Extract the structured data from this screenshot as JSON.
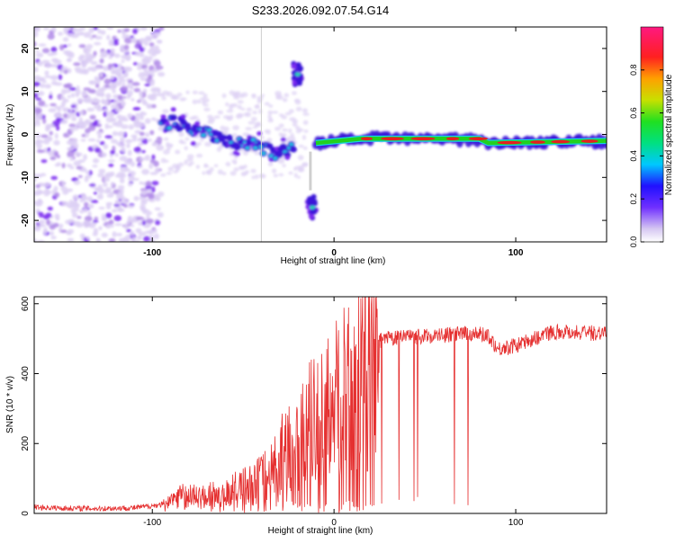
{
  "title": "S233.2026.092.07.54.G14",
  "colors": {
    "spectrum_low": "#d9c6f2",
    "spectrum_mid": "#3a10e0",
    "signal_band": "#22d020",
    "signal_core": "#e52020",
    "snr_line": "#e53030"
  },
  "chart_data": [
    {
      "type": "heatmap",
      "name": "spectrogram",
      "xlabel": "Height of straight line (km)",
      "ylabel": "Frequency (Hz)",
      "xlim": [
        -165,
        150
      ],
      "ylim": [
        -25,
        25
      ],
      "x_ticks": [
        -100,
        0,
        100
      ],
      "y_ticks": [
        -20,
        -10,
        0,
        10,
        20
      ],
      "x_tick_labels": [
        "-100",
        "0",
        "100"
      ],
      "y_tick_labels": [
        "-20",
        "-10",
        "0",
        "10",
        "20"
      ],
      "colorbar": {
        "label": "Normalized spectral amplitude",
        "range": [
          0,
          1
        ],
        "ticks": [
          0.0,
          0.2,
          0.4,
          0.6,
          0.8
        ],
        "tick_labels": [
          "0.0",
          "0.2",
          "0.4",
          "0.6",
          "0.8"
        ]
      },
      "features": [
        {
          "name": "noise",
          "x_range": [
            -165,
            -95
          ],
          "freq_range": [
            -25,
            25
          ],
          "amplitude": 0.15
        },
        {
          "name": "wandering-trace",
          "points": [
            [
              -95,
              3
            ],
            [
              -80,
              2
            ],
            [
              -60,
              -1
            ],
            [
              -40,
              -3
            ],
            [
              -30,
              -5
            ],
            [
              -22,
              -2
            ]
          ],
          "amplitude": 0.3
        },
        {
          "name": "upper-blob",
          "x": -20,
          "freq": 14,
          "amplitude": 0.35
        },
        {
          "name": "lower-blob",
          "x": -12,
          "freq": -17,
          "amplitude": 0.3
        },
        {
          "name": "stable-signal",
          "points": [
            [
              -10,
              -2
            ],
            [
              15,
              -1
            ],
            [
              80,
              -1
            ],
            [
              85,
              -2
            ],
            [
              150,
              -1.5
            ]
          ],
          "amplitude": 0.9
        }
      ]
    },
    {
      "type": "line",
      "name": "snr",
      "xlabel": "Height of straight line (km)",
      "ylabel": "SNR (10 * v/v)",
      "xlim": [
        -165,
        150
      ],
      "ylim": [
        0,
        620
      ],
      "x_ticks": [
        -100,
        0,
        100
      ],
      "y_ticks": [
        0,
        200,
        400,
        600
      ],
      "x_tick_labels": [
        "-100",
        "0",
        "100"
      ],
      "y_tick_labels": [
        "0",
        "200",
        "400",
        "600"
      ],
      "series": [
        {
          "name": "SNR",
          "x": [
            -165,
            -150,
            -130,
            -110,
            -95,
            -85,
            -75,
            -60,
            -45,
            -35,
            -28,
            -20,
            -12,
            -5,
            0,
            5,
            10,
            15,
            20,
            30,
            45,
            60,
            75,
            85,
            90,
            100,
            110,
            120,
            130,
            140,
            150
          ],
          "y": [
            18,
            15,
            14,
            16,
            25,
            60,
            55,
            70,
            95,
            140,
            200,
            250,
            300,
            330,
            360,
            400,
            440,
            470,
            490,
            500,
            505,
            510,
            515,
            510,
            470,
            480,
            500,
            520,
            520,
            515,
            520
          ]
        }
      ]
    }
  ]
}
